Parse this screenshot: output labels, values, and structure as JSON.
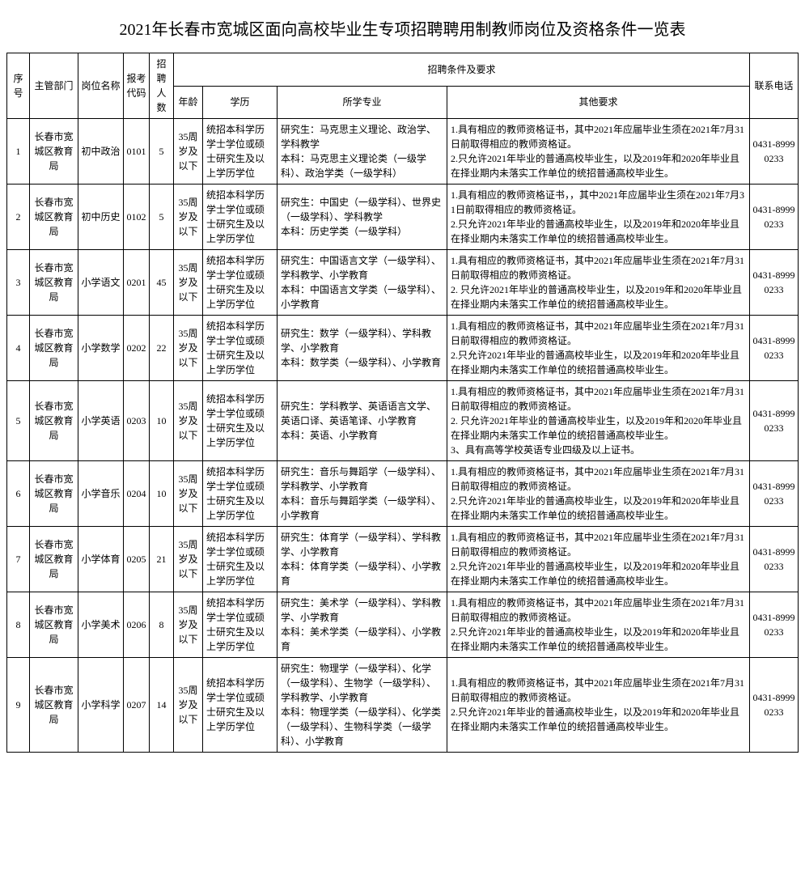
{
  "title": "2021年长春市宽城区面向高校毕业生专项招聘聘用制教师岗位及资格条件一览表",
  "headers": {
    "seq": "序号",
    "dept": "主管部门",
    "post": "岗位名称",
    "code": "报考代码",
    "count": "招聘人数",
    "conditions": "招聘条件及要求",
    "age": "年龄",
    "edu": "学历",
    "major": "所学专业",
    "other": "其他要求",
    "phone": "联系电话"
  },
  "rows": [
    {
      "seq": "1",
      "dept": "长春市宽城区教育局",
      "post": "初中政治",
      "code": "0101",
      "count": "5",
      "age": "35周岁及以下",
      "edu": "统招本科学历学士学位或硕士研究生及以上学历学位",
      "major": "研究生：马克思主义理论、政治学、学科教学\n本科：马克思主义理论类（一级学科）、政治学类（一级学科）",
      "other": "1.具有相应的教师资格证书，其中2021年应届毕业生须在2021年7月31日前取得相应的教师资格证。\n2.只允许2021年毕业的普通高校毕业生，以及2019年和2020年毕业且在择业期内未落实工作单位的统招普通高校毕业生。",
      "phone": "0431-89990233"
    },
    {
      "seq": "2",
      "dept": "长春市宽城区教育局",
      "post": "初中历史",
      "code": "0102",
      "count": "5",
      "age": "35周岁及以下",
      "edu": "统招本科学历学士学位或硕士研究生及以上学历学位",
      "major": "研究生：中国史（一级学科）、世界史（一级学科）、学科教学\n本科：历史学类（一级学科）",
      "other": "1.具有相应的教师资格证书，，其中2021年应届毕业生须在2021年7月31日前取得相应的教师资格证。\n2.只允许2021年毕业的普通高校毕业生，以及2019年和2020年毕业且在择业期内未落实工作单位的统招普通高校毕业生。",
      "phone": "0431-89990233"
    },
    {
      "seq": "3",
      "dept": "长春市宽城区教育局",
      "post": "小学语文",
      "code": "0201",
      "count": "45",
      "age": "35周岁及以下",
      "edu": "统招本科学历学士学位或硕士研究生及以上学历学位",
      "major": "研究生：中国语言文学（一级学科）、学科教学、小学教育\n本科：中国语言文学类（一级学科）、小学教育",
      "other": "1.具有相应的教师资格证书，其中2021年应届毕业生须在2021年7月31日前取得相应的教师资格证。\n2. 只允许2021年毕业的普通高校毕业生，以及2019年和2020年毕业且在择业期内未落实工作单位的统招普通高校毕业生。",
      "phone": "0431-89990233"
    },
    {
      "seq": "4",
      "dept": "长春市宽城区教育局",
      "post": "小学数学",
      "code": "0202",
      "count": "22",
      "age": "35周岁及以下",
      "edu": "统招本科学历学士学位或硕士研究生及以上学历学位",
      "major": "研究生：数学（一级学科）、学科教学、小学教育\n本科：数学类（一级学科）、小学教育",
      "other": "1.具有相应的教师资格证书，其中2021年应届毕业生须在2021年7月31日前取得相应的教师资格证。\n2.只允许2021年毕业的普通高校毕业生，以及2019年和2020年毕业且在择业期内未落实工作单位的统招普通高校毕业生。",
      "phone": "0431-89990233"
    },
    {
      "seq": "5",
      "dept": "长春市宽城区教育局",
      "post": "小学英语",
      "code": "0203",
      "count": "10",
      "age": "35周岁及以下",
      "edu": "统招本科学历学士学位或硕士研究生及以上学历学位",
      "major": "研究生：学科教学、英语语言文学、英语口译、英语笔译、小学教育\n本科：英语、小学教育",
      "other": "1.具有相应的教师资格证书，其中2021年应届毕业生须在2021年7月31日前取得相应的教师资格证。\n2. 只允许2021年毕业的普通高校毕业生，以及2019年和2020年毕业且在择业期内未落实工作单位的统招普通高校毕业生。\n3、具有高等学校英语专业四级及以上证书。",
      "phone": "0431-89990233"
    },
    {
      "seq": "6",
      "dept": "长春市宽城区教育局",
      "post": "小学音乐",
      "code": "0204",
      "count": "10",
      "age": "35周岁及以下",
      "edu": "统招本科学历学士学位或硕士研究生及以上学历学位",
      "major": "研究生：音乐与舞蹈学（一级学科）、学科教学、小学教育\n本科：音乐与舞蹈学类（一级学科）、小学教育",
      "other": "1.具有相应的教师资格证书，其中2021年应届毕业生须在2021年7月31日前取得相应的教师资格证。\n2.只允许2021年毕业的普通高校毕业生，以及2019年和2020年毕业且在择业期内未落实工作单位的统招普通高校毕业生。",
      "phone": "0431-89990233"
    },
    {
      "seq": "7",
      "dept": "长春市宽城区教育局",
      "post": "小学体育",
      "code": "0205",
      "count": "21",
      "age": "35周岁及以下",
      "edu": "统招本科学历学士学位或硕士研究生及以上学历学位",
      "major": "研究生：体育学（一级学科）、学科教学、小学教育\n本科：体育学类（一级学科）、小学教育",
      "other": "1.具有相应的教师资格证书，其中2021年应届毕业生须在2021年7月31日前取得相应的教师资格证。\n2.只允许2021年毕业的普通高校毕业生，以及2019年和2020年毕业且在择业期内未落实工作单位的统招普通高校毕业生。",
      "phone": "0431-89990233"
    },
    {
      "seq": "8",
      "dept": "长春市宽城区教育局",
      "post": "小学美术",
      "code": "0206",
      "count": "8",
      "age": "35周岁及以下",
      "edu": "统招本科学历学士学位或硕士研究生及以上学历学位",
      "major": "研究生：美术学（一级学科）、学科教学、小学教育\n本科：美术学类（一级学科）、小学教育",
      "other": "1.具有相应的教师资格证书，其中2021年应届毕业生须在2021年7月31日前取得相应的教师资格证。\n2.只允许2021年毕业的普通高校毕业生，以及2019年和2020年毕业且在择业期内未落实工作单位的统招普通高校毕业生。",
      "phone": "0431-89990233"
    },
    {
      "seq": "9",
      "dept": "长春市宽城区教育局",
      "post": "小学科学",
      "code": "0207",
      "count": "14",
      "age": "35周岁及以下",
      "edu": "统招本科学历学士学位或硕士研究生及以上学历学位",
      "major": "研究生：物理学（一级学科）、化学（一级学科）、生物学（一级学科）、学科教学、小学教育\n本科：物理学类（一级学科）、化学类（一级学科）、生物科学类（一级学科）、小学教育",
      "other": "1.具有相应的教师资格证书，其中2021年应届毕业生须在2021年7月31日前取得相应的教师资格证。\n2.只允许2021年毕业的普通高校毕业生，以及2019年和2020年毕业且在择业期内未落实工作单位的统招普通高校毕业生。",
      "phone": "0431-89990233"
    }
  ]
}
